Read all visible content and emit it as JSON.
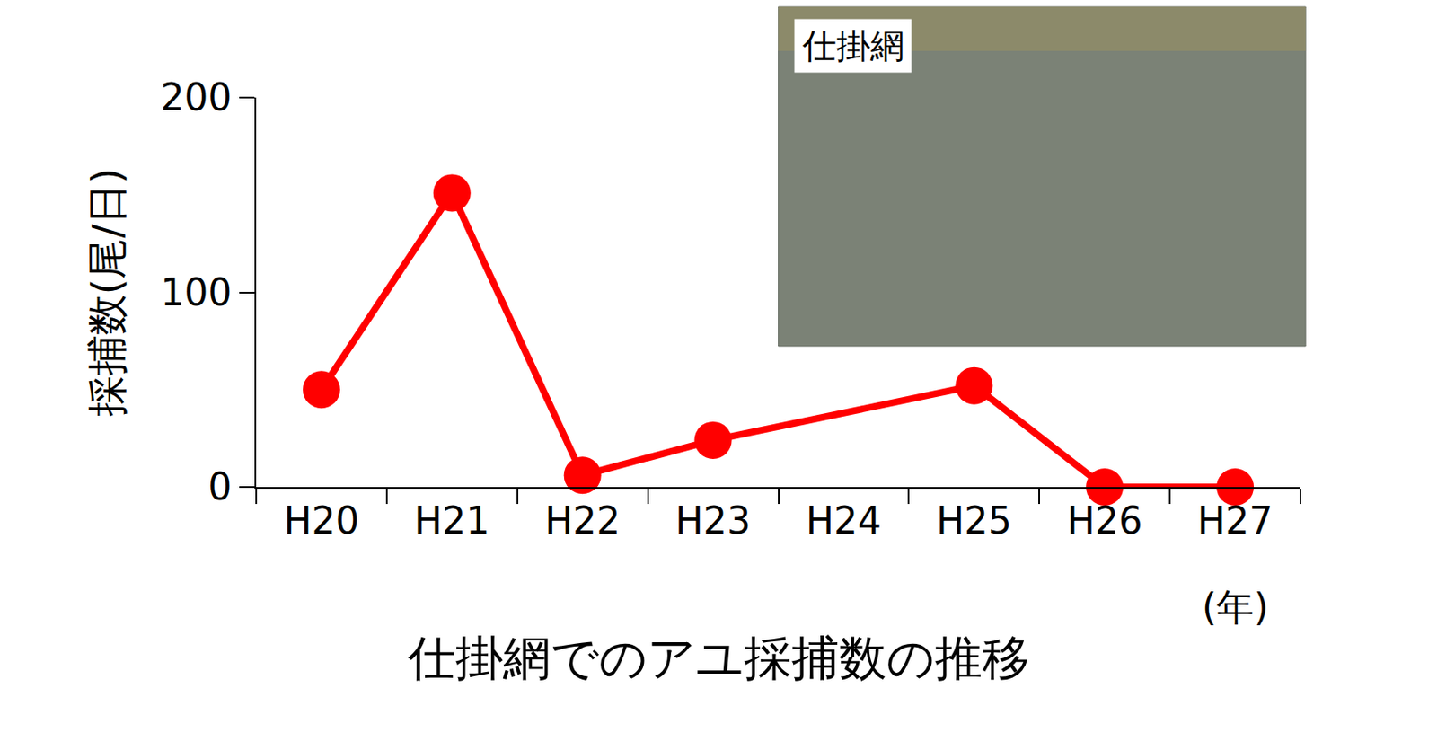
{
  "chart_data": {
    "type": "line",
    "title": "仕掛網でのアユ採捕数の推移",
    "y_label": "採捕数(尾/日)",
    "x_label": "(年)",
    "categories": [
      "H20",
      "H21",
      "H22",
      "H23",
      "H24",
      "H25",
      "H26",
      "H27"
    ],
    "values": [
      50,
      151,
      6,
      24,
      null,
      52,
      0,
      0
    ],
    "color": "#ff0000",
    "marker": "circle",
    "line_style": "solid",
    "ylim": [
      0,
      200
    ],
    "yticks": [
      0,
      100,
      200
    ],
    "grid": false,
    "annotations": [
      "仕掛網"
    ]
  }
}
